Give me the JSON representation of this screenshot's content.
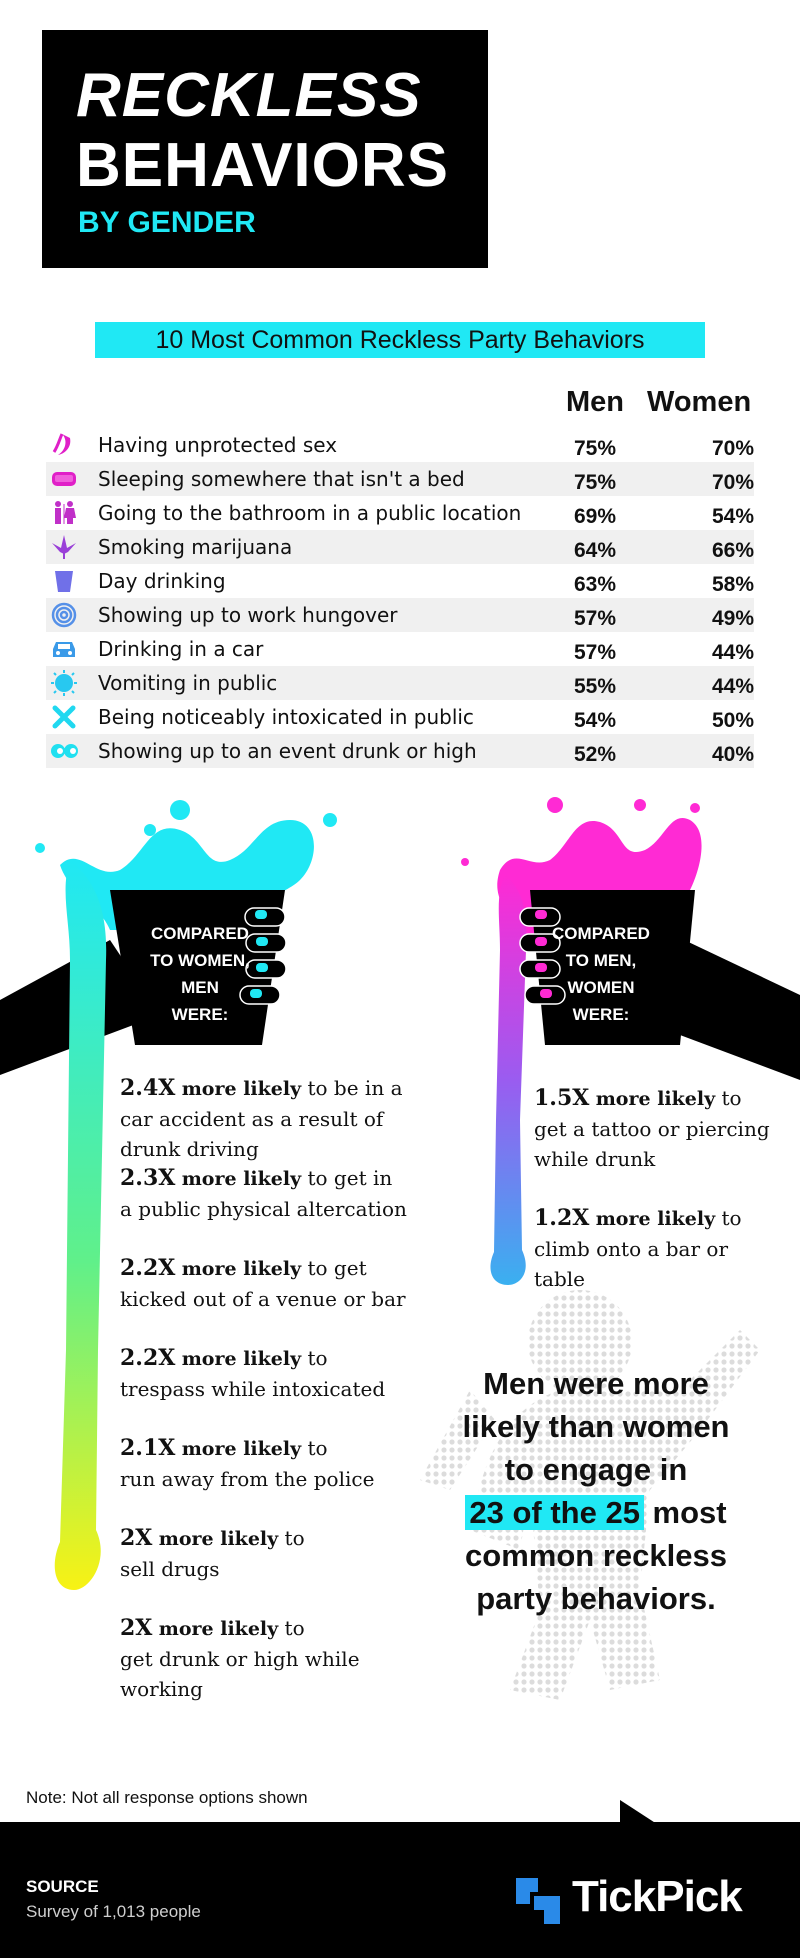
{
  "title": {
    "line1": "RECKLESS",
    "line2": "BEHAVIORS",
    "line3": "BY GENDER"
  },
  "subtitle": "10 Most Common Reckless Party Behaviors",
  "table": {
    "col_men": "Men",
    "col_women": "Women",
    "rows": [
      {
        "icon": "banana-icon",
        "label": "Having unprotected sex",
        "men": "75%",
        "women": "70%"
      },
      {
        "icon": "couch-icon",
        "label": "Sleeping somewhere that isn't a bed",
        "men": "75%",
        "women": "70%"
      },
      {
        "icon": "restroom-icon",
        "label": "Going to the bathroom in a public location",
        "men": "69%",
        "women": "54%"
      },
      {
        "icon": "leaf-icon",
        "label": "Smoking marijuana",
        "men": "64%",
        "women": "66%"
      },
      {
        "icon": "cup-icon",
        "label": "Day drinking",
        "men": "63%",
        "women": "58%"
      },
      {
        "icon": "spiral-icon",
        "label": "Showing up to work hungover",
        "men": "57%",
        "women": "49%"
      },
      {
        "icon": "car-icon",
        "label": "Drinking in a car",
        "men": "57%",
        "women": "44%"
      },
      {
        "icon": "burst-icon",
        "label": "Vomiting in public",
        "men": "55%",
        "women": "44%"
      },
      {
        "icon": "x-icon",
        "label": "Being noticeably intoxicated in public",
        "men": "54%",
        "women": "50%"
      },
      {
        "icon": "eyes-icon",
        "label": "Showing up to an event drunk or high",
        "men": "52%",
        "women": "40%"
      }
    ]
  },
  "men_cup": {
    "l1": "COMPARED",
    "l2": "TO WOMEN,",
    "l3": "MEN",
    "l4": "WERE:"
  },
  "women_cup": {
    "l1": "COMPARED",
    "l2": "TO  MEN,",
    "l3": "WOMEN",
    "l4": "WERE:"
  },
  "more_likely": "more likely",
  "men_stats": [
    {
      "mult": "2.4X",
      "pre": "to be in a",
      "l2": "car accident as a result of",
      "l3": "drunk driving"
    },
    {
      "mult": "2.3X",
      "pre": "to get in",
      "l2": "a public physical altercation",
      "l3": ""
    },
    {
      "mult": "2.2X",
      "pre": "to get",
      "l2": "kicked out of a venue or bar",
      "l3": ""
    },
    {
      "mult": "2.2X",
      "pre": "to",
      "l2": "trespass while intoxicated",
      "l3": ""
    },
    {
      "mult": "2.1X",
      "pre": "to",
      "l2": "run away from the police",
      "l3": ""
    },
    {
      "mult": "2X",
      "pre": "to",
      "l2": "sell drugs",
      "l3": ""
    },
    {
      "mult": "2X",
      "pre": "to",
      "l2": "get drunk or high while",
      "l3": "working"
    }
  ],
  "women_stats": [
    {
      "mult": "1.5X",
      "pre": "to",
      "l2": "get a tattoo or piercing",
      "l3": "while drunk"
    },
    {
      "mult": "1.2X",
      "pre": "to",
      "l2": "climb onto a bar or",
      "l3": "table"
    }
  ],
  "callout": {
    "l1": "Men were more",
    "l2": "likely than women",
    "l3": "to engage in",
    "hl": "23 of the 25",
    "l4b": " most",
    "l5": "common reckless",
    "l6": "party behaviors."
  },
  "note": "Note: Not all response options shown",
  "footer": {
    "source_label": "SOURCE",
    "source_text": "Survey of 1,013 people",
    "brand": "TickPick"
  },
  "colors": {
    "cyan": "#20e8f4",
    "magenta": "#ff2ad4",
    "yellow": "#f4f21a",
    "blue": "#3aa8f0"
  }
}
